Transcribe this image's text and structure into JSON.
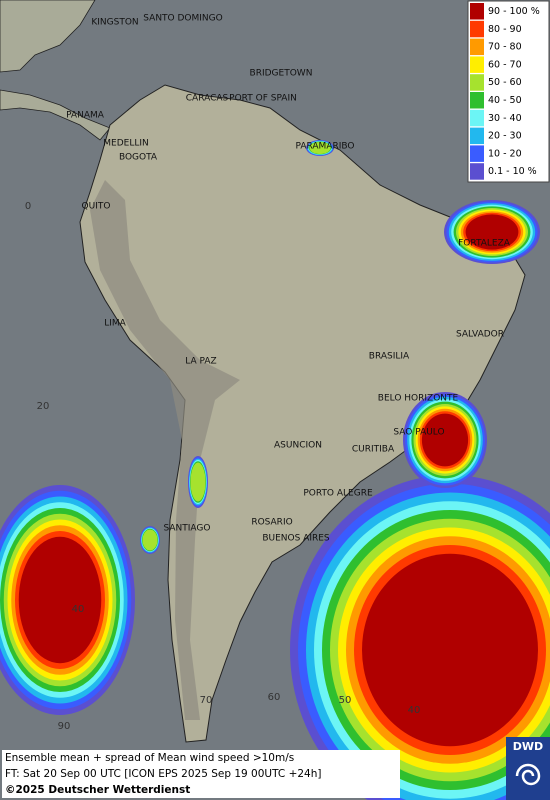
{
  "map": {
    "cities": [
      "KINGSTON",
      "SANTO DOMINGO",
      "BRIDGETOWN",
      "CARACAS",
      "PORT OF SPAIN",
      "PANAMA",
      "MEDELLIN",
      "BOGOTA",
      "PARAMARIBO",
      "QUITO",
      "FORTALEZA",
      "LIMA",
      "SALVADOR",
      "BRASILIA",
      "LA PAZ",
      "BELO HORIZONTE",
      "SAO PAULO",
      "ASUNCION",
      "CURITIBA",
      "PORTO ALEGRE",
      "SANTIAGO",
      "ROSARIO",
      "BUENOS AIRES"
    ],
    "grid_labels": [
      "0",
      "20",
      "40",
      "40",
      "90",
      "70",
      "60",
      "50"
    ],
    "legend": [
      {
        "label": "90 - 100 %",
        "color": "#b00000"
      },
      {
        "label": "80 - 90",
        "color": "#ff3a00"
      },
      {
        "label": "70 - 80",
        "color": "#ff9a00"
      },
      {
        "label": "60 - 70",
        "color": "#ffee00"
      },
      {
        "label": "50 - 60",
        "color": "#a6e22e"
      },
      {
        "label": "40 - 50",
        "color": "#2fbf2f"
      },
      {
        "label": "30 - 40",
        "color": "#6cf5f5"
      },
      {
        "label": "20 - 30",
        "color": "#22b8ee"
      },
      {
        "label": "10 - 20",
        "color": "#3a5cff"
      },
      {
        "label": "0.1 - 10 %",
        "color": "#5b4fd0"
      }
    ],
    "footer": {
      "line1": "Ensemble mean + spread of Mean wind speed >10m/s",
      "line2": "FT: Sat 20 Sep 00 UTC [ICON EPS 2025 Sep 19 00UTC +24h]",
      "copyright": "©2025 Deutscher Wetterdienst"
    },
    "logo": "DWD"
  }
}
